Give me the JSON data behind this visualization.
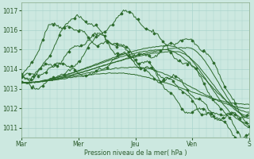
{
  "bg_color": "#cce8e0",
  "grid_color": "#aad4cc",
  "line_color": "#2d6b2d",
  "marker_color": "#2d6b2d",
  "xlabel": "Pression niveau de la mer( hPa )",
  "ylim": [
    1010.5,
    1017.4
  ],
  "yticks": [
    1011,
    1012,
    1013,
    1014,
    1015,
    1016,
    1017
  ],
  "xtick_labels": [
    "Mar",
    "Mer",
    "Jeu",
    "Ven",
    "S"
  ],
  "xtick_positions": [
    0,
    48,
    96,
    144,
    192
  ],
  "n_points": 193
}
